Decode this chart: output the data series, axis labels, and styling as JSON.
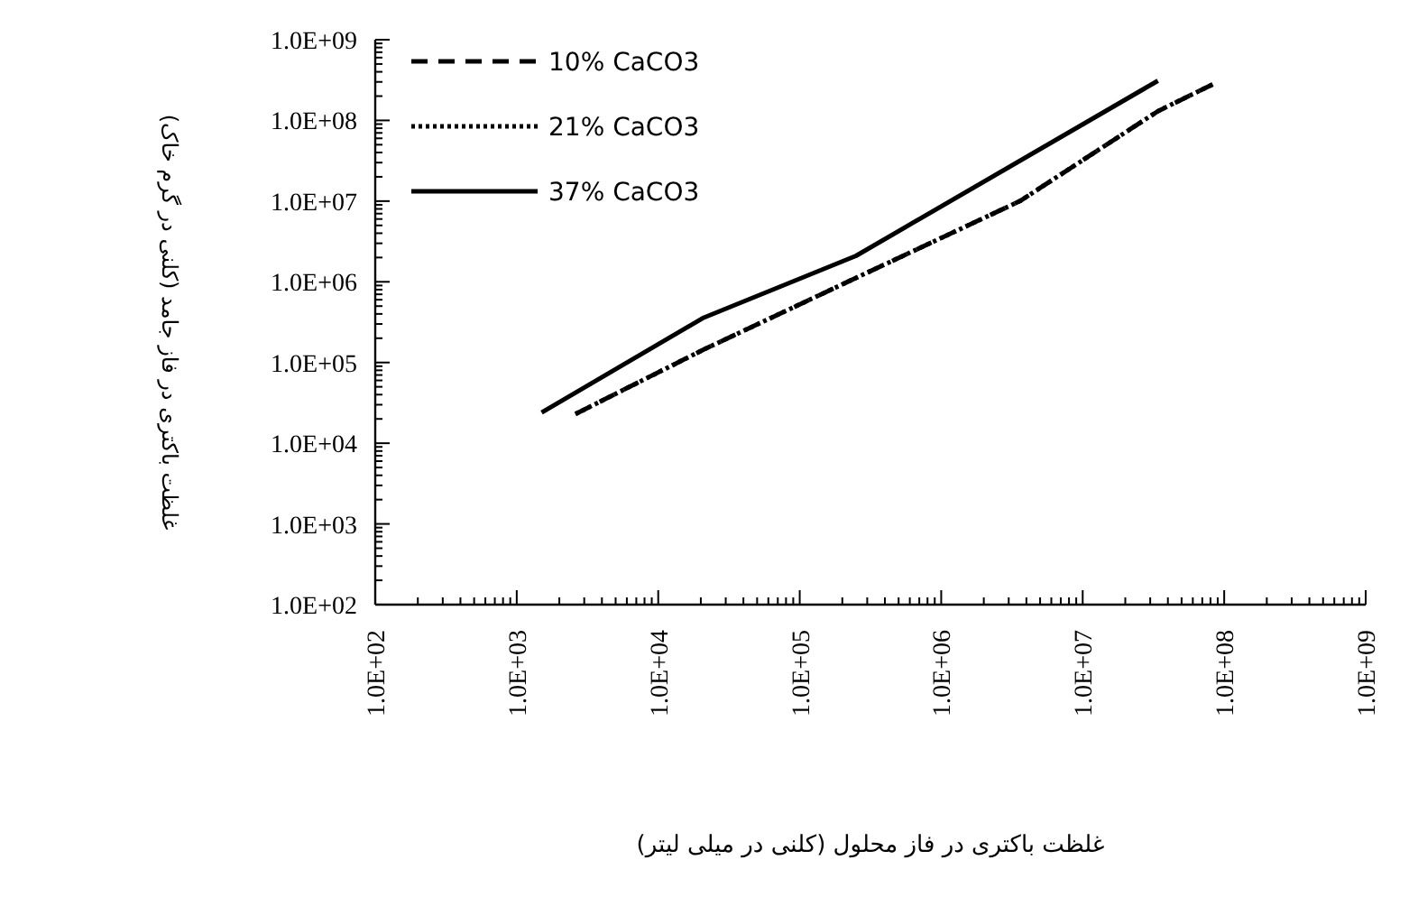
{
  "chart_data": {
    "type": "line",
    "xlabel": "غلظت باکتری در فاز محلول (کلنی در میلی لیتر)",
    "ylabel": "غلظت باکتری در فاز جامد (کلنی در گرم خاک)",
    "log": "xy",
    "grid": false,
    "legend": "top left",
    "xlim": [
      100,
      1000000000
    ],
    "ylim": [
      100,
      1000000000
    ],
    "xticks": [
      {
        "value": 100,
        "label": "1.0E+02"
      },
      {
        "value": 1000,
        "label": "1.0E+03"
      },
      {
        "value": 10000,
        "label": "1.0E+04"
      },
      {
        "value": 100000,
        "label": "1.0E+05"
      },
      {
        "value": 1000000,
        "label": "1.0E+06"
      },
      {
        "value": 10000000,
        "label": "1.0E+07"
      },
      {
        "value": 100000000,
        "label": "1.0E+08"
      },
      {
        "value": 1000000000,
        "label": "1.0E+09"
      }
    ],
    "yticks": [
      {
        "value": 100,
        "label": "1.0E+02"
      },
      {
        "value": 1000,
        "label": "1.0E+03"
      },
      {
        "value": 10000,
        "label": "1.0E+04"
      },
      {
        "value": 100000,
        "label": "1.0E+05"
      },
      {
        "value": 1000000,
        "label": "1.0E+06"
      },
      {
        "value": 10000000,
        "label": "1.0E+07"
      },
      {
        "value": 100000000,
        "label": "1.0E+08"
      },
      {
        "value": 1000000000,
        "label": "1.0E+09"
      }
    ],
    "series": [
      {
        "name": "10% CaCO3",
        "color": "#000000",
        "line_style": "dashed",
        "x": [
          2600,
          21000,
          300000,
          3600000,
          34000000,
          83000000
        ],
        "values": [
          23000,
          145000,
          1300000,
          10000000,
          130000000,
          280000000
        ]
      },
      {
        "name": "21% CaCO3",
        "color": "#000000",
        "line_style": "dotted",
        "x": [
          2600,
          21000,
          300000,
          3600000,
          34000000,
          83000000
        ],
        "values": [
          23000,
          145000,
          1300000,
          10000000,
          130000000,
          280000000
        ]
      },
      {
        "name": "37% CaCO3",
        "color": "#000000",
        "line_style": "solid",
        "x": [
          1500,
          21000,
          250000,
          34000000
        ],
        "values": [
          24000,
          360000,
          2100000,
          310000000
        ]
      }
    ]
  }
}
